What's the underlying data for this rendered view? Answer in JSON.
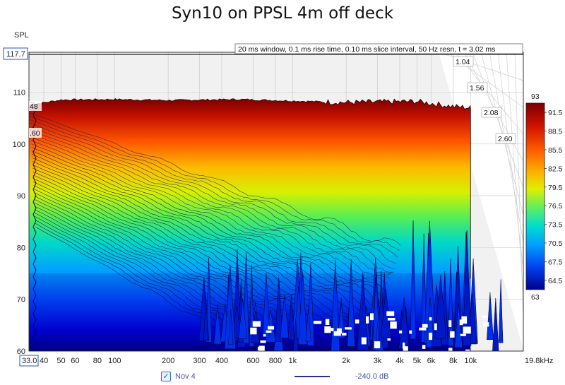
{
  "title": "Syn10 on PPSL 4m off deck",
  "legend": {
    "checked": true,
    "check_glyph": "✓",
    "series_label": "Nov 4",
    "floor_label": "-240.0 dB",
    "line_color": "#2b2f8a"
  },
  "chart_data": {
    "type": "waterfall",
    "title": "Syn10 on PPSL 4m off deck",
    "ylabel": "SPL",
    "xunit": "kHz",
    "info": "20 ms window, 0.1 ms rise time, 0.10 ms slice interval, 50 Hz resn, t = 3.02 ms",
    "x_range": [
      33,
      19800
    ],
    "x_log": true,
    "x_min_label": "33.0",
    "x_ticks": [
      {
        "v": 40,
        "label": "40"
      },
      {
        "v": 50,
        "label": "50"
      },
      {
        "v": 60,
        "label": "60"
      },
      {
        "v": 80,
        "label": "80"
      },
      {
        "v": 100,
        "label": "100"
      },
      {
        "v": 200,
        "label": "200"
      },
      {
        "v": 300,
        "label": "300"
      },
      {
        "v": 400,
        "label": "400"
      },
      {
        "v": 600,
        "label": "600"
      },
      {
        "v": 800,
        "label": "800"
      },
      {
        "v": 1000,
        "label": "1k"
      },
      {
        "v": 2000,
        "label": "2k"
      },
      {
        "v": 3000,
        "label": "3k"
      },
      {
        "v": 4000,
        "label": "4k"
      },
      {
        "v": 5000,
        "label": "5k"
      },
      {
        "v": 6000,
        "label": "6k"
      },
      {
        "v": 8000,
        "label": "8k"
      },
      {
        "v": 10000,
        "label": "10k"
      },
      {
        "v": 19800,
        "label": "19.8kHz"
      }
    ],
    "y_range": [
      60,
      117.7
    ],
    "y_ticks": [
      60,
      70,
      80,
      90,
      100,
      110
    ],
    "y_max_label": "117.7",
    "time_ticks_ms": [
      "1.04",
      "1.56",
      "2.08",
      "2.60"
    ],
    "time_side_labels": [
      "48",
      ".60"
    ],
    "colorbar": {
      "min": 63,
      "max": 93,
      "ticks": [
        "91.5",
        "88.5",
        "85.5",
        "82.5",
        "79.5",
        "76.5",
        "73.5",
        "70.5",
        "67.5",
        "64.5"
      ],
      "min_label": "63",
      "max_label": "93"
    },
    "first_slice": {
      "description_free": true,
      "freq_hz": [
        33,
        50,
        100,
        200,
        500,
        1000,
        2000,
        5000,
        8000,
        10000
      ],
      "spl_db": [
        107.5,
        108.5,
        108.6,
        108.4,
        108.6,
        108.3,
        108.0,
        108.2,
        107.2,
        107.0
      ]
    },
    "decay_at_50Hz_db": [
      104.6,
      103.6,
      102.2,
      100.3,
      98.6
    ]
  }
}
